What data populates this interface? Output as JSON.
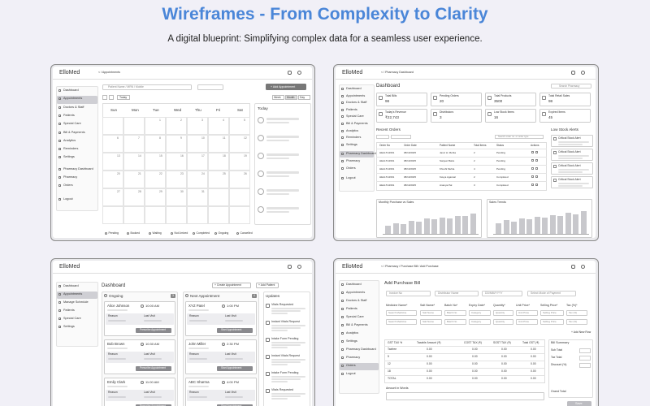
{
  "header": {
    "title": "Wireframes - From Complexity to Clarity",
    "subtitle": "A digital blueprint: Simplifying complex data for a seamless user experience."
  },
  "panels": [
    {
      "logo": "ElloMed",
      "breadcrumb": "< / Appointments",
      "nav": [
        "Dashboard",
        "Appointments",
        "Doctors & Staff",
        "Patients",
        "Special Care",
        "Bill & Payments",
        "Analytics",
        "Reminders",
        "Settings",
        "Pharmacy Dashboard",
        "Pharmacy",
        "Orders",
        "Logout"
      ],
      "search": "Patient Name / MRN / Mobile",
      "add_button": "+ Add Appointment",
      "today_button": "Today",
      "views": [
        "Week",
        "Month",
        "Day"
      ],
      "weekdays": [
        "Sun",
        "Mon",
        "Tue",
        "Wed",
        "Thu",
        "Fri",
        "Sat"
      ],
      "dates": [
        [
          "",
          "",
          "1",
          "2",
          "3",
          "4",
          "5"
        ],
        [
          "6",
          "7",
          "8",
          "9",
          "10",
          "11",
          "12"
        ],
        [
          "13",
          "14",
          "15",
          "16",
          "17",
          "18",
          "19"
        ],
        [
          "20",
          "21",
          "22",
          "23",
          "24",
          "25",
          "26"
        ],
        [
          "27",
          "28",
          "29",
          "30",
          "31",
          "",
          ""
        ],
        [
          "",
          "",
          "",
          "",
          "",
          "",
          ""
        ]
      ],
      "legend": [
        "Pending",
        "Booked",
        "Waiting",
        "Not Arrived",
        "Completed",
        "Ongoing",
        "Cancelled"
      ],
      "side_title": "Today"
    },
    {
      "logo": "ElloMed",
      "breadcrumb": "< / Pharmacy Dashboard",
      "nav": [
        "Dashboard",
        "Appointments",
        "Doctors & Staff",
        "Patients",
        "Special Care",
        "Bill & Payments",
        "Analytics",
        "Reminders",
        "Settings",
        "Pharmacy Dashboard",
        "Pharmacy",
        "Orders",
        "Logout"
      ],
      "heading": "Dashboard",
      "search": "Search Pharmacy",
      "cards": [
        {
          "label": "Total Bills",
          "value": "98"
        },
        {
          "label": "Pending Orders",
          "value": "20"
        },
        {
          "label": "Total Products",
          "value": "3500"
        },
        {
          "label": "Total Retail Sales",
          "value": "98"
        },
        {
          "label": "Today's Revenue",
          "value": "₹22,743"
        },
        {
          "label": "Distributors",
          "value": "3"
        },
        {
          "label": "Low Stock Items",
          "value": "16"
        },
        {
          "label": "Expired Items",
          "value": "45"
        }
      ],
      "orders_title": "Recent Orders",
      "order_search": "Search order no. or order type",
      "order_headers": [
        "Order No",
        "Order Date",
        "Patient Name",
        "Total Items",
        "Status",
        "Actions"
      ],
      "orders": [
        [
          "HEALTH1961",
          "08/10/2025",
          "Janvi H. Mehta",
          "2",
          "Pending"
        ],
        [
          "HEALTH1961",
          "08/10/2025",
          "Sanjeet Batra",
          "2",
          "Pending"
        ],
        [
          "HEALTH1961",
          "08/10/2025",
          "Khushi Mehta",
          "4",
          "Pending"
        ],
        [
          "HEALTH1961",
          "08/10/2025",
          "Kavya Agarwal",
          "2",
          "Completed"
        ],
        [
          "HEALTH1961",
          "08/10/2025",
          "Ananya Pal",
          "3",
          "Completed"
        ]
      ],
      "alerts_title": "Low Stock Alerts",
      "alerts": [
        "Critical Stock Alert",
        "Critical Stock Alert",
        "Critical Stock Alert",
        "Critical Stock Alert"
      ],
      "charts": [
        {
          "type": "bar",
          "title": "Monthly Purchase vs Sales",
          "values": [
            30,
            42,
            38,
            50,
            46,
            58,
            55,
            64,
            60,
            70,
            68,
            78
          ],
          "ylim": [
            0,
            100
          ]
        },
        {
          "type": "bar",
          "title": "Sales Trends",
          "values": [
            40,
            52,
            48,
            60,
            56,
            66,
            62,
            72,
            70,
            80,
            76,
            86
          ],
          "ylim": [
            0,
            100
          ]
        }
      ]
    },
    {
      "logo": "ElloMed",
      "nav": [
        "Dashboard",
        "Appointments",
        "Manage Schedule",
        "Patients",
        "Special Care",
        "Settings"
      ],
      "heading": "Dashboard",
      "buttons": [
        "+ Create Appointment",
        "+ Add Patient"
      ],
      "columns": [
        {
          "title": "Ongoing",
          "count": "3",
          "button": "Prescribe Appointment",
          "cards": [
            {
              "name": "Alice Johnson",
              "time": "10:00 AM"
            },
            {
              "name": "Bob Brown",
              "time": "10:30 AM"
            },
            {
              "name": "Emily Clark",
              "time": "11:00 AM"
            }
          ]
        },
        {
          "title": "Next Appointment",
          "count": "4",
          "button": "Start Appointment",
          "cards": [
            {
              "name": "XYZ Patel",
              "time": "1:00 PM"
            },
            {
              "name": "John Miller",
              "time": "2:30 PM"
            },
            {
              "name": "ABC Sharma",
              "time": "4:00 PM"
            }
          ]
        }
      ],
      "reason": "Reason",
      "last_visit": "Last Visit",
      "updates_title": "Updates",
      "updates": [
        "Vitals Requested",
        "Instant Vitals Request",
        "Intake Form Pending",
        "Instant Vitals Request",
        "Intake Form Pending",
        "Vitals Requested"
      ]
    },
    {
      "logo": "ElloMed",
      "breadcrumb": "< / Pharmacy / Purchase Bill / Add Purchase",
      "nav": [
        "Dashboard",
        "Appointments",
        "Doctors & Staff",
        "Patients",
        "Special Care",
        "Bill & Payments",
        "Analytics",
        "Settings",
        "Pharmacy Dashboard",
        "Pharmacy",
        "Orders",
        "Logout"
      ],
      "heading": "Add Purchase Bill",
      "fields": [
        "Invoice No",
        "Distributor Name",
        "DD/MM/YYYY",
        "Select Mode of Payment"
      ],
      "item_headers": [
        "Medicine Name*",
        "Salt Name*",
        "Batch No*",
        "Expiry Date*",
        "Quantity*",
        "Unit Price*",
        "Selling Price*",
        "Tax (%)*"
      ],
      "item_rows": [
        [
          "Search Medicine",
          "Salt Name",
          "Batch No",
          "Category",
          "Quantity",
          "Unit Price",
          "Selling Price",
          "Tax (%)"
        ],
        [
          "Search Medicine",
          "Salt Name",
          "Batch No",
          "Category",
          "Quantity",
          "Unit Price",
          "Selling Price",
          "Tax (%)"
        ]
      ],
      "add_row": "+ Add New Row",
      "tax_headers": [
        "GST TAX %",
        "Taxable Amount (₹)",
        "CGST TAX (₹)",
        "SGST TAX (₹)",
        "Total GST (₹)"
      ],
      "tax_rows": [
        [
          "Taxfree",
          "0.00",
          "0.00",
          "0.00",
          "0.00"
        ],
        [
          "5",
          "0.00",
          "0.00",
          "0.00",
          "0.00"
        ],
        [
          "12",
          "0.00",
          "0.00",
          "0.00",
          "0.00"
        ],
        [
          "18",
          "0.00",
          "0.00",
          "0.00",
          "0.00"
        ],
        [
          "TOTAL",
          "0.00",
          "0.00",
          "0.00",
          "0.00"
        ]
      ],
      "summary_title": "Bill Summary",
      "summary": [
        "Sub Total",
        "Tax Total",
        "Discount (%)"
      ],
      "grand_total": "Grand Total",
      "amount_words": "Amount in Words",
      "save": "Save"
    }
  ]
}
